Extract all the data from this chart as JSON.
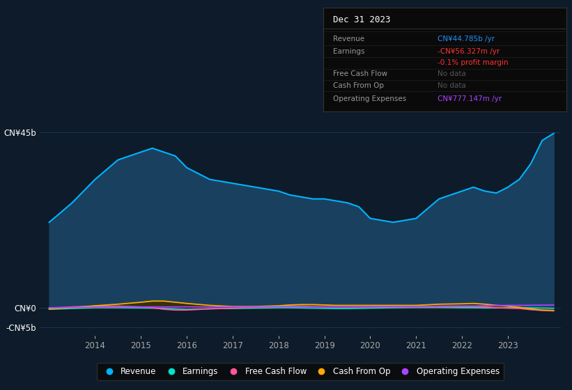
{
  "background_color": "#0d1b2a",
  "plot_bg_color": "#0d1b2a",
  "title": "Dec 31 2023",
  "years": [
    2013.0,
    2013.5,
    2014.0,
    2014.5,
    2015.0,
    2015.25,
    2015.5,
    2015.75,
    2016.0,
    2016.5,
    2017.0,
    2017.5,
    2018.0,
    2018.25,
    2018.5,
    2018.75,
    2019.0,
    2019.25,
    2019.5,
    2019.75,
    2020.0,
    2020.5,
    2021.0,
    2021.5,
    2022.0,
    2022.25,
    2022.5,
    2022.75,
    2023.0,
    2023.25,
    2023.5,
    2023.75,
    2024.0
  ],
  "revenue": [
    22,
    27,
    33,
    38,
    40,
    41,
    40,
    39,
    36,
    33,
    32,
    31,
    30,
    29,
    28.5,
    28,
    28,
    27.5,
    27,
    26,
    23,
    22,
    23,
    28,
    30,
    31,
    30,
    29.5,
    31,
    33,
    37,
    43,
    44.785
  ],
  "earnings": [
    -0.3,
    -0.1,
    0.1,
    0.1,
    0.05,
    0.0,
    -0.1,
    -0.2,
    -0.3,
    -0.15,
    -0.1,
    0.0,
    0.1,
    0.1,
    0.05,
    0.0,
    -0.05,
    -0.1,
    -0.1,
    -0.05,
    0.0,
    0.1,
    0.15,
    0.15,
    0.1,
    0.1,
    0.05,
    0.05,
    0.1,
    0.1,
    0.05,
    0.0,
    -0.056
  ],
  "free_cash_flow": [
    0.0,
    0.3,
    0.5,
    0.5,
    0.3,
    0.1,
    -0.3,
    -0.5,
    -0.5,
    -0.2,
    0.0,
    0.2,
    0.4,
    0.5,
    0.5,
    0.4,
    0.3,
    0.3,
    0.3,
    0.3,
    0.3,
    0.3,
    0.3,
    0.35,
    0.4,
    0.4,
    0.3,
    0.1,
    0.0,
    -0.1,
    -0.4,
    -0.6,
    -0.7
  ],
  "cash_from_op": [
    -0.2,
    0.1,
    0.6,
    1.0,
    1.5,
    1.8,
    1.8,
    1.5,
    1.2,
    0.7,
    0.4,
    0.4,
    0.6,
    0.8,
    0.9,
    0.9,
    0.8,
    0.7,
    0.7,
    0.7,
    0.7,
    0.7,
    0.7,
    1.0,
    1.1,
    1.2,
    1.0,
    0.7,
    0.5,
    0.2,
    -0.2,
    -0.5,
    -0.6
  ],
  "operating_expenses": [
    0.1,
    0.15,
    0.25,
    0.3,
    0.3,
    0.3,
    0.3,
    0.3,
    0.3,
    0.3,
    0.3,
    0.3,
    0.35,
    0.35,
    0.35,
    0.35,
    0.35,
    0.35,
    0.35,
    0.35,
    0.4,
    0.4,
    0.4,
    0.5,
    0.55,
    0.55,
    0.6,
    0.65,
    0.7,
    0.7,
    0.72,
    0.75,
    0.777
  ],
  "revenue_color": "#00b4ff",
  "revenue_fill_color": "#1a4060",
  "earnings_color": "#00e5cc",
  "free_cash_flow_color": "#ff5599",
  "cash_from_op_color": "#ffaa00",
  "operating_expenses_color": "#aa44ff",
  "grid_color": "#1e3a5a",
  "text_color": "#aaaaaa",
  "axis_label_color": "#ffffff",
  "ytick_labels": [
    "CN¥45b",
    "CN¥0",
    "-CN¥5b"
  ],
  "ytick_values": [
    45,
    0,
    -5
  ],
  "xtick_labels": [
    "2014",
    "2015",
    "2016",
    "2017",
    "2018",
    "2019",
    "2020",
    "2021",
    "2022",
    "2023"
  ],
  "xtick_values": [
    2014,
    2015,
    2016,
    2017,
    2018,
    2019,
    2020,
    2021,
    2022,
    2023
  ],
  "ylim": [
    -7,
    50
  ],
  "xlim": [
    2012.8,
    2024.15
  ],
  "legend_labels": [
    "Revenue",
    "Earnings",
    "Free Cash Flow",
    "Cash From Op",
    "Operating Expenses"
  ],
  "legend_colors": [
    "#00b4ff",
    "#00e5cc",
    "#ff5599",
    "#ffaa00",
    "#aa44ff"
  ]
}
